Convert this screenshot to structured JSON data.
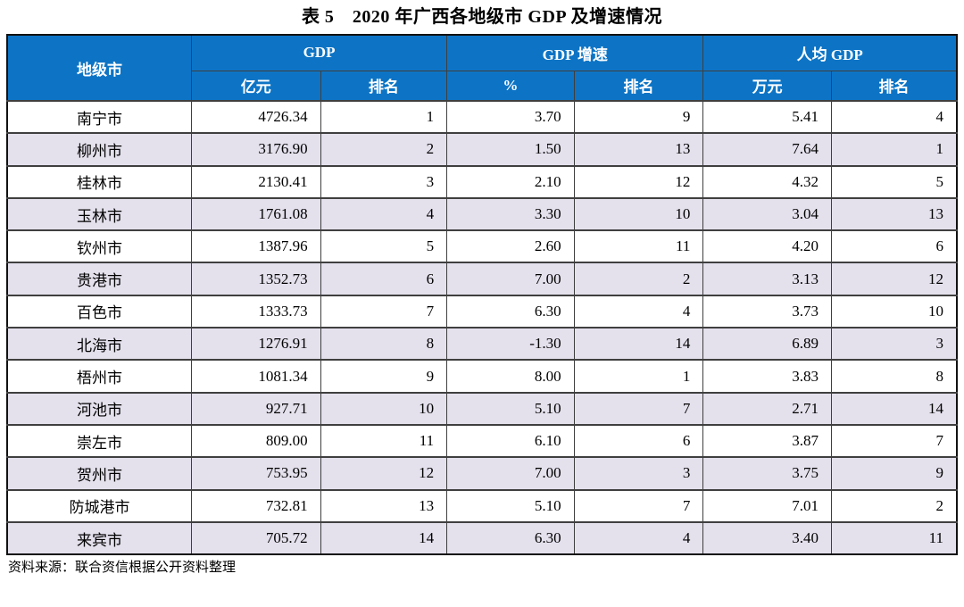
{
  "title": "表 5　2020 年广西各地级市 GDP 及增速情况",
  "source": "资料来源：联合资信根据公开资料整理",
  "colors": {
    "header_bg": "#0d74c5",
    "header_text": "#ffffff",
    "row_alt_bg": "#e4e0ec",
    "row_bg": "#ffffff",
    "grid_border": "#3f3f3f",
    "frame_border": "#111111",
    "text": "#000000"
  },
  "table": {
    "col_header": "地级市",
    "groups": [
      {
        "label": "GDP",
        "sub": [
          "亿元",
          "排名"
        ]
      },
      {
        "label": "GDP 增速",
        "sub": [
          "%",
          "排名"
        ]
      },
      {
        "label": "人均 GDP",
        "sub": [
          "万元",
          "排名"
        ]
      }
    ],
    "rows": [
      {
        "city": "南宁市",
        "gdp": "4726.34",
        "gdp_rank": "1",
        "growth": "3.70",
        "growth_rank": "9",
        "per_capita": "5.41",
        "per_capita_rank": "4"
      },
      {
        "city": "柳州市",
        "gdp": "3176.90",
        "gdp_rank": "2",
        "growth": "1.50",
        "growth_rank": "13",
        "per_capita": "7.64",
        "per_capita_rank": "1"
      },
      {
        "city": "桂林市",
        "gdp": "2130.41",
        "gdp_rank": "3",
        "growth": "2.10",
        "growth_rank": "12",
        "per_capita": "4.32",
        "per_capita_rank": "5"
      },
      {
        "city": "玉林市",
        "gdp": "1761.08",
        "gdp_rank": "4",
        "growth": "3.30",
        "growth_rank": "10",
        "per_capita": "3.04",
        "per_capita_rank": "13"
      },
      {
        "city": "钦州市",
        "gdp": "1387.96",
        "gdp_rank": "5",
        "growth": "2.60",
        "growth_rank": "11",
        "per_capita": "4.20",
        "per_capita_rank": "6"
      },
      {
        "city": "贵港市",
        "gdp": "1352.73",
        "gdp_rank": "6",
        "growth": "7.00",
        "growth_rank": "2",
        "per_capita": "3.13",
        "per_capita_rank": "12"
      },
      {
        "city": "百色市",
        "gdp": "1333.73",
        "gdp_rank": "7",
        "growth": "6.30",
        "growth_rank": "4",
        "per_capita": "3.73",
        "per_capita_rank": "10"
      },
      {
        "city": "北海市",
        "gdp": "1276.91",
        "gdp_rank": "8",
        "growth": "-1.30",
        "growth_rank": "14",
        "per_capita": "6.89",
        "per_capita_rank": "3"
      },
      {
        "city": "梧州市",
        "gdp": "1081.34",
        "gdp_rank": "9",
        "growth": "8.00",
        "growth_rank": "1",
        "per_capita": "3.83",
        "per_capita_rank": "8"
      },
      {
        "city": "河池市",
        "gdp": "927.71",
        "gdp_rank": "10",
        "growth": "5.10",
        "growth_rank": "7",
        "per_capita": "2.71",
        "per_capita_rank": "14"
      },
      {
        "city": "崇左市",
        "gdp": "809.00",
        "gdp_rank": "11",
        "growth": "6.10",
        "growth_rank": "6",
        "per_capita": "3.87",
        "per_capita_rank": "7"
      },
      {
        "city": "贺州市",
        "gdp": "753.95",
        "gdp_rank": "12",
        "growth": "7.00",
        "growth_rank": "3",
        "per_capita": "3.75",
        "per_capita_rank": "9"
      },
      {
        "city": "防城港市",
        "gdp": "732.81",
        "gdp_rank": "13",
        "growth": "5.10",
        "growth_rank": "7",
        "per_capita": "7.01",
        "per_capita_rank": "2"
      },
      {
        "city": "来宾市",
        "gdp": "705.72",
        "gdp_rank": "14",
        "growth": "6.30",
        "growth_rank": "4",
        "per_capita": "3.40",
        "per_capita_rank": "11"
      }
    ]
  }
}
